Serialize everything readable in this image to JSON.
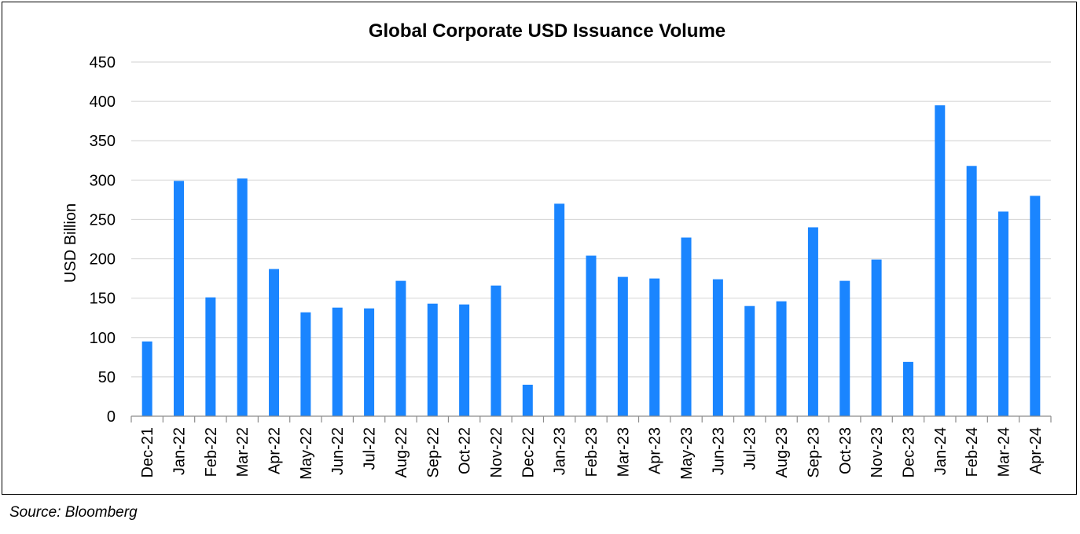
{
  "chart_data": {
    "type": "bar",
    "title": "Global Corporate USD Issuance Volume",
    "xlabel": "",
    "ylabel": "USD Billion",
    "ylim": [
      0,
      450
    ],
    "yticks": [
      0,
      50,
      100,
      150,
      200,
      250,
      300,
      350,
      400,
      450
    ],
    "grid": true,
    "legend": "none",
    "bar_color": "#1a85ff",
    "categories": [
      "Dec-21",
      "Jan-22",
      "Feb-22",
      "Mar-22",
      "Apr-22",
      "May-22",
      "Jun-22",
      "Jul-22",
      "Aug-22",
      "Sep-22",
      "Oct-22",
      "Nov-22",
      "Dec-22",
      "Jan-23",
      "Feb-23",
      "Mar-23",
      "Apr-23",
      "May-23",
      "Jun-23",
      "Jul-23",
      "Aug-23",
      "Sep-23",
      "Oct-23",
      "Nov-23",
      "Dec-23",
      "Jan-24",
      "Feb-24",
      "Mar-24",
      "Apr-24"
    ],
    "values": [
      95,
      299,
      151,
      302,
      187,
      132,
      138,
      137,
      172,
      143,
      142,
      166,
      40,
      270,
      204,
      177,
      175,
      227,
      174,
      140,
      146,
      240,
      172,
      199,
      69,
      395,
      318,
      260,
      280
    ]
  },
  "source": "Source: Bloomberg"
}
